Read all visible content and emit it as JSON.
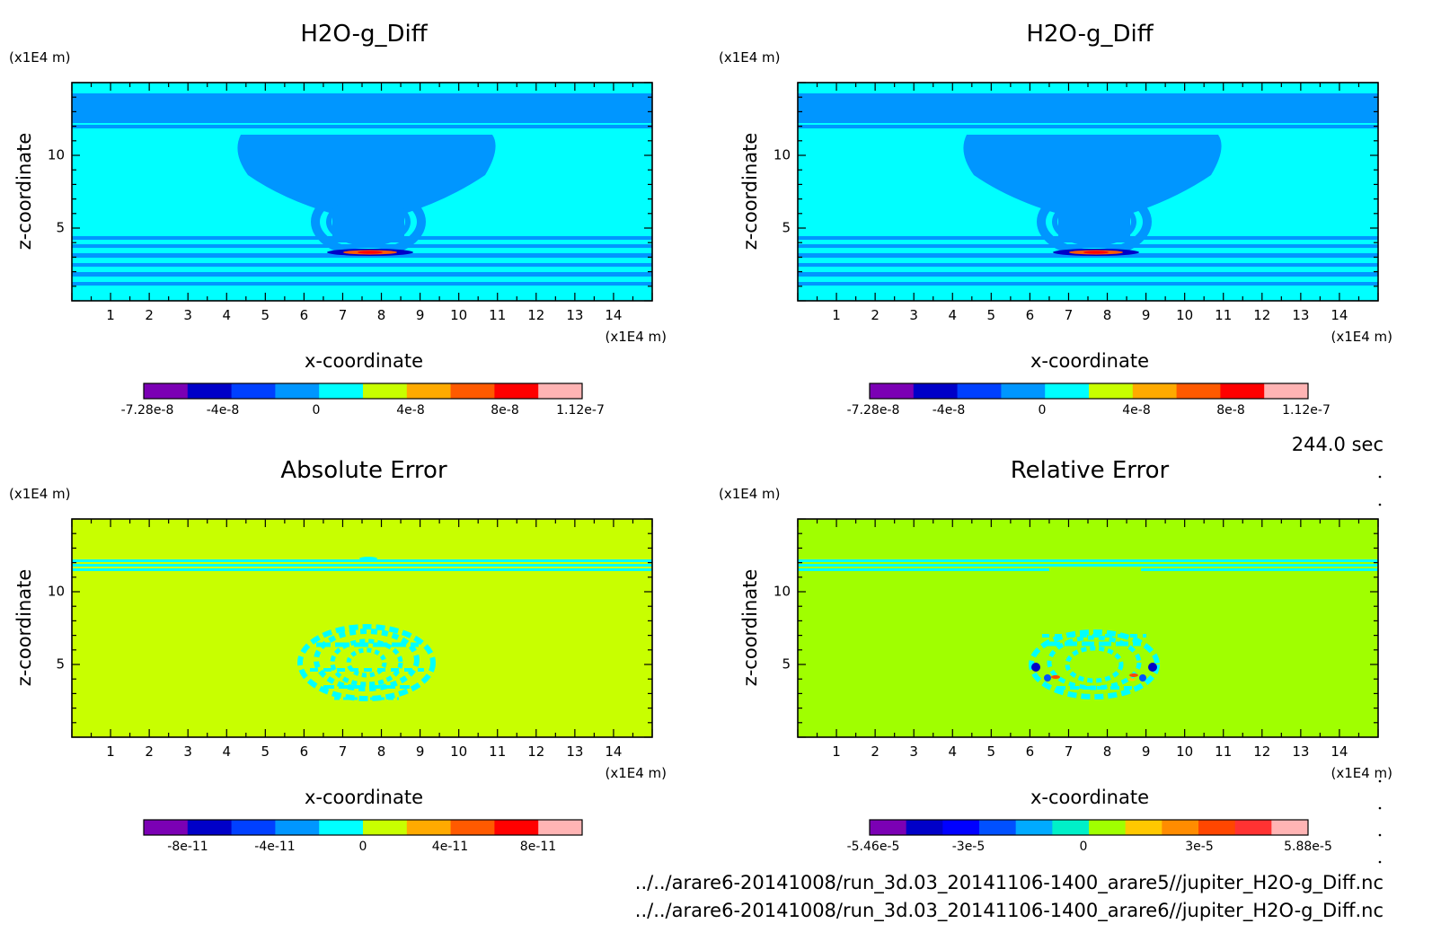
{
  "footer": {
    "time": "244.0 sec",
    "file1": "../../arare6-20141008/run_3d.03_20141106-1400_arare5//jupiter_H2O-g_Diff.nc",
    "file2": "../../arare6-20141008/run_3d.03_20141106-1400_arare6//jupiter_H2O-g_Diff.nc"
  },
  "chart_data": [
    {
      "type": "heatmap",
      "title": "H2O-g_Diff",
      "xlabel": "x-coordinate",
      "ylabel": "z-coordinate",
      "x_unit": "(x1E4 m)",
      "z_unit": "(x1E4 m)",
      "xlim": [
        0,
        15
      ],
      "ylim": [
        0,
        15
      ],
      "x_ticks": [
        "1",
        "2",
        "3",
        "4",
        "5",
        "6",
        "7",
        "8",
        "9",
        "10",
        "11",
        "12",
        "13",
        "14"
      ],
      "z_ticks": [
        "5",
        "10"
      ],
      "background_color": "#00ffff",
      "colorbar": {
        "colors": [
          "#7b00b4",
          "#0000c8",
          "#0040ff",
          "#0096ff",
          "#00ffff",
          "#c8ff00",
          "#ffaa00",
          "#ff5a00",
          "#ff0000",
          "#ffb4b4"
        ],
        "tick_labels": [
          "-7.28e-8",
          "-4e-8",
          "0",
          "4e-8",
          "8e-8",
          "1.12e-7"
        ]
      }
    },
    {
      "type": "heatmap",
      "title": "H2O-g_Diff",
      "xlabel": "x-coordinate",
      "ylabel": "z-coordinate",
      "x_unit": "(x1E4 m)",
      "z_unit": "(x1E4 m)",
      "xlim": [
        0,
        15
      ],
      "ylim": [
        0,
        15
      ],
      "x_ticks": [
        "1",
        "2",
        "3",
        "4",
        "5",
        "6",
        "7",
        "8",
        "9",
        "10",
        "11",
        "12",
        "13",
        "14"
      ],
      "z_ticks": [
        "5",
        "10"
      ],
      "background_color": "#00ffff",
      "colorbar": {
        "colors": [
          "#7b00b4",
          "#0000c8",
          "#0040ff",
          "#0096ff",
          "#00ffff",
          "#c8ff00",
          "#ffaa00",
          "#ff5a00",
          "#ff0000",
          "#ffb4b4"
        ],
        "tick_labels": [
          "-7.28e-8",
          "-4e-8",
          "0",
          "4e-8",
          "8e-8",
          "1.12e-7"
        ]
      }
    },
    {
      "type": "heatmap",
      "title": "Absolute Error",
      "xlabel": "x-coordinate",
      "ylabel": "z-coordinate",
      "x_unit": "(x1E4 m)",
      "z_unit": "(x1E4 m)",
      "xlim": [
        0,
        15
      ],
      "ylim": [
        0,
        15
      ],
      "x_ticks": [
        "1",
        "2",
        "3",
        "4",
        "5",
        "6",
        "7",
        "8",
        "9",
        "10",
        "11",
        "12",
        "13",
        "14"
      ],
      "z_ticks": [
        "5",
        "10"
      ],
      "background_color": "#c8ff00",
      "colorbar": {
        "colors": [
          "#7b00b4",
          "#0000c8",
          "#0040ff",
          "#0096ff",
          "#00ffff",
          "#c8ff00",
          "#ffaa00",
          "#ff5a00",
          "#ff0000",
          "#ffb4b4"
        ],
        "tick_labels": [
          "-8e-11",
          "-4e-11",
          "0",
          "4e-11",
          "8e-11"
        ]
      }
    },
    {
      "type": "heatmap",
      "title": "Relative Error",
      "xlabel": "x-coordinate",
      "ylabel": "z-coordinate",
      "x_unit": "(x1E4 m)",
      "z_unit": "(x1E4 m)",
      "xlim": [
        0,
        15
      ],
      "ylim": [
        0,
        15
      ],
      "x_ticks": [
        "1",
        "2",
        "3",
        "4",
        "5",
        "6",
        "7",
        "8",
        "9",
        "10",
        "11",
        "12",
        "13",
        "14"
      ],
      "z_ticks": [
        "5",
        "10"
      ],
      "background_color": "#a0ff00",
      "colorbar": {
        "colors": [
          "#7b00b4",
          "#0000c8",
          "#0000ff",
          "#0050ff",
          "#00aaff",
          "#00f0c8",
          "#a0ff00",
          "#ffc800",
          "#ff8c00",
          "#ff4600",
          "#ff3232",
          "#ffb4b4"
        ],
        "tick_labels": [
          "-5.46e-5",
          "-3e-5",
          "0",
          "3e-5",
          "5.88e-5"
        ]
      }
    }
  ]
}
